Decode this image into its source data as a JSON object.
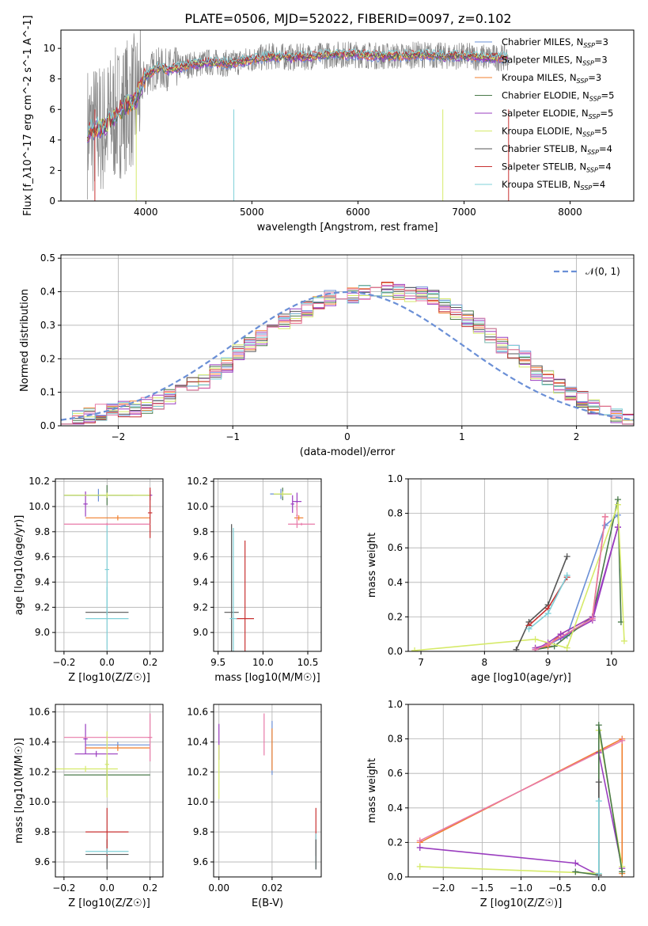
{
  "title": "PLATE=0506, MJD=52022, FIBERID=0097, z=0.102",
  "colors": {
    "c_miles": "#6a8fd6",
    "s_miles": "#9a3dbf",
    "k_miles": "#f07f2d",
    "c_elodie": "#4a7a4a",
    "s_elodie": "#9a3dbf",
    "k_elodie": "#d6ea6a",
    "c_stelib": "#555555",
    "s_stelib": "#c83232",
    "k_stelib": "#7fd0d8",
    "pink": "#e87aa8",
    "grey_spec": "#888888"
  },
  "chart_data": [
    {
      "id": "spectrum",
      "type": "line",
      "xlabel": "wavelength [Angstrom, rest frame]",
      "ylabel": "Flux [f_λ10^-17 erg cm^-2 s^-1 A^-1]",
      "xlim": [
        3200,
        8600
      ],
      "ylim": [
        0,
        11.2
      ],
      "xticks": [
        4000,
        5000,
        6000,
        7000,
        8000
      ],
      "yticks": [
        0,
        2,
        4,
        6,
        8,
        10
      ],
      "legend": "top-right",
      "series": [
        {
          "name": "Chabrier MILES, N_SSP=3",
          "color": "c_miles"
        },
        {
          "name": "Salpeter MILES, N_SSP=3",
          "color": "s_miles"
        },
        {
          "name": "Kroupa MILES, N_SSP=3",
          "color": "k_miles"
        },
        {
          "name": "Chabrier ELODIE, N_SSP=5",
          "color": "c_elodie"
        },
        {
          "name": "Salpeter ELODIE, N_SSP=5",
          "color": "s_elodie"
        },
        {
          "name": "Kroupa ELODIE, N_SSP=5",
          "color": "k_elodie"
        },
        {
          "name": "Chabrier STELIB, N_SSP=4",
          "color": "c_stelib"
        },
        {
          "name": "Salpeter STELIB, N_SSP=4",
          "color": "s_stelib"
        },
        {
          "name": "Kroupa STELIB, N_SSP=4",
          "color": "k_stelib"
        }
      ],
      "continuum": [
        [
          3450,
          4.6
        ],
        [
          3600,
          4.8
        ],
        [
          3700,
          5.5
        ],
        [
          3800,
          6.2
        ],
        [
          3900,
          6.6
        ],
        [
          4000,
          8.2
        ],
        [
          4100,
          8.7
        ],
        [
          4200,
          8.6
        ],
        [
          4400,
          8.9
        ],
        [
          4600,
          9.1
        ],
        [
          4800,
          9.0
        ],
        [
          5000,
          9.3
        ],
        [
          5200,
          9.5
        ],
        [
          5400,
          9.4
        ],
        [
          5600,
          9.5
        ],
        [
          5800,
          9.6
        ],
        [
          6000,
          9.6
        ],
        [
          6200,
          9.5
        ],
        [
          6400,
          9.5
        ],
        [
          6600,
          9.6
        ],
        [
          6800,
          9.5
        ],
        [
          7000,
          9.5
        ],
        [
          7200,
          9.4
        ],
        [
          7400,
          9.4
        ]
      ]
    },
    {
      "id": "residuals",
      "type": "bar",
      "xlabel": "(data-model)/error",
      "ylabel": "Normed distribution",
      "xlim": [
        -2.5,
        2.5
      ],
      "ylim": [
        0,
        0.51
      ],
      "xticks": [
        -2,
        -1,
        0,
        1,
        2
      ],
      "yticks": [
        0.0,
        0.1,
        0.2,
        0.3,
        0.4,
        0.5
      ],
      "legend": "top-right",
      "reference": {
        "name": "𝒩(0, 1)",
        "color": "c_miles"
      },
      "bin_edges_step": 0.1,
      "bin_start": -2.5,
      "base_hist": [
        0.02,
        0.02,
        0.03,
        0.04,
        0.05,
        0.05,
        0.05,
        0.06,
        0.07,
        0.09,
        0.11,
        0.12,
        0.13,
        0.16,
        0.18,
        0.22,
        0.24,
        0.26,
        0.29,
        0.31,
        0.33,
        0.35,
        0.37,
        0.38,
        0.38,
        0.39,
        0.4,
        0.41,
        0.41,
        0.4,
        0.39,
        0.39,
        0.38,
        0.36,
        0.34,
        0.32,
        0.3,
        0.27,
        0.24,
        0.22,
        0.2,
        0.16,
        0.14,
        0.12,
        0.1,
        0.08,
        0.06,
        0.04,
        0.03,
        0.02
      ]
    },
    {
      "id": "age_vs_Z",
      "type": "scatter",
      "xlabel": "Z [log10(Z/Z☉)]",
      "ylabel": "age  [log10(age/yr)]",
      "xlim": [
        -0.24,
        0.26
      ],
      "ylim": [
        8.85,
        10.22
      ],
      "xticks": [
        -0.2,
        0.0,
        0.2
      ],
      "yticks": [
        9.0,
        9.2,
        9.4,
        9.6,
        9.8,
        10.0,
        10.2
      ],
      "points": [
        {
          "x": -0.04,
          "xerr": 0.16,
          "y": 10.09,
          "yerr": 0.05,
          "color": "c_miles"
        },
        {
          "x": 0.2,
          "xerr": 0.01,
          "y": 10.09,
          "yerr": 0.04,
          "color": "s_miles"
        },
        {
          "x": 0.05,
          "xerr": 0.15,
          "y": 9.91,
          "yerr": 0.02,
          "color": "k_miles"
        },
        {
          "x": 0.0,
          "xerr": 0.2,
          "y": 10.09,
          "yerr": 0.08,
          "color": "c_elodie"
        },
        {
          "x": -0.1,
          "xerr": 0.01,
          "y": 10.02,
          "yerr": 0.1,
          "color": "s_elodie"
        },
        {
          "x": 0.0,
          "xerr": 0.2,
          "y": 10.09,
          "yerr": 0.02,
          "color": "k_elodie"
        },
        {
          "x": 0.0,
          "xerr": 0.1,
          "y": 9.16,
          "yerr": 0.02,
          "color": "c_stelib"
        },
        {
          "x": 0.2,
          "xerr": 0.01,
          "y": 9.95,
          "yerr": 0.2,
          "color": "s_stelib"
        },
        {
          "x": 0.0,
          "xerr": 0.1,
          "y": 9.11,
          "yerr": 0.25,
          "color": "k_stelib"
        },
        {
          "x": 0.0,
          "xerr": 0.2,
          "y": 9.86,
          "yerr": 0.01,
          "color": "pink"
        },
        {
          "x": 0.0,
          "xerr": 0.01,
          "y": 9.5,
          "yerr": 0.35,
          "color": "k_stelib"
        }
      ]
    },
    {
      "id": "age_vs_mass",
      "type": "scatter",
      "xlabel": "mass [log10(M/M☉)]",
      "ylabel": "",
      "xlim": [
        9.45,
        10.65
      ],
      "ylim": [
        8.85,
        10.22
      ],
      "xticks": [
        9.5,
        10.0,
        10.5
      ],
      "yticks": [
        9.0,
        9.2,
        9.4,
        9.6,
        9.8,
        10.0,
        10.2
      ],
      "points": [
        {
          "x": 10.2,
          "xerr": 0.12,
          "y": 10.1,
          "yerr": 0.04,
          "color": "c_miles"
        },
        {
          "x": 10.38,
          "xerr": 0.05,
          "y": 10.04,
          "yerr": 0.07,
          "color": "s_miles"
        },
        {
          "x": 10.4,
          "xerr": 0.05,
          "y": 9.91,
          "yerr": 0.02,
          "color": "k_miles"
        },
        {
          "x": 10.22,
          "xerr": 0.1,
          "y": 10.1,
          "yerr": 0.05,
          "color": "c_elodie"
        },
        {
          "x": 10.33,
          "xerr": 0.02,
          "y": 10.02,
          "yerr": 0.07,
          "color": "s_elodie"
        },
        {
          "x": 10.22,
          "xerr": 0.1,
          "y": 10.1,
          "yerr": 0.02,
          "color": "k_elodie"
        },
        {
          "x": 9.65,
          "xerr": 0.08,
          "y": 9.16,
          "yerr": 0.7,
          "color": "c_stelib"
        },
        {
          "x": 9.8,
          "xerr": 0.1,
          "y": 9.11,
          "yerr": 0.62,
          "color": "s_stelib"
        },
        {
          "x": 9.67,
          "xerr": 0.04,
          "y": 9.11,
          "yerr": 0.72,
          "color": "k_stelib"
        },
        {
          "x": 10.43,
          "xerr": 0.15,
          "y": 9.86,
          "yerr": 0.01,
          "color": "pink"
        },
        {
          "x": 10.38,
          "xerr": 0.01,
          "y": 9.93,
          "yerr": 0.1,
          "color": "pink"
        }
      ]
    },
    {
      "id": "mass_weight_vs_age",
      "type": "line",
      "xlabel": "age  [log10(age/yr)]",
      "ylabel": "mass weight",
      "xlim": [
        6.8,
        10.35
      ],
      "ylim": [
        0,
        1.0
      ],
      "xticks": [
        7,
        8,
        9,
        10
      ],
      "yticks": [
        0.0,
        0.2,
        0.4,
        0.6,
        0.8,
        1.0
      ],
      "series": [
        {
          "color": "c_miles",
          "x": [
            8.8,
            9.0,
            9.3,
            9.9,
            10.1
          ],
          "y": [
            0.01,
            0.04,
            0.09,
            0.73,
            0.79
          ]
        },
        {
          "color": "s_miles",
          "x": [
            8.8,
            9.0,
            9.2,
            9.7,
            10.1
          ],
          "y": [
            0.02,
            0.04,
            0.08,
            0.18,
            0.72
          ]
        },
        {
          "color": "k_miles",
          "x": [
            8.8,
            9.0,
            9.2,
            9.7,
            9.9
          ],
          "y": [
            0.01,
            0.03,
            0.1,
            0.2,
            0.78
          ]
        },
        {
          "color": "c_elodie",
          "x": [
            8.8,
            9.1,
            9.7,
            10.1,
            10.15
          ],
          "y": [
            0.01,
            0.03,
            0.2,
            0.88,
            0.17
          ]
        },
        {
          "color": "s_elodie",
          "x": [
            8.8,
            9.0,
            9.2,
            9.7,
            10.1
          ],
          "y": [
            0.01,
            0.05,
            0.1,
            0.2,
            0.72
          ]
        },
        {
          "color": "k_elodie",
          "x": [
            6.9,
            8.8,
            9.3,
            10.1,
            10.2
          ],
          "y": [
            0.005,
            0.07,
            0.02,
            0.85,
            0.06
          ]
        },
        {
          "color": "c_stelib",
          "x": [
            8.5,
            8.7,
            9.0,
            9.3
          ],
          "y": [
            0.01,
            0.17,
            0.27,
            0.55
          ]
        },
        {
          "color": "s_stelib",
          "x": [
            8.7,
            9.0,
            9.3
          ],
          "y": [
            0.15,
            0.25,
            0.43
          ]
        },
        {
          "color": "k_stelib",
          "x": [
            8.7,
            9.0,
            9.3
          ],
          "y": [
            0.13,
            0.22,
            0.44
          ]
        },
        {
          "color": "pink",
          "x": [
            8.8,
            9.0,
            9.7,
            9.9
          ],
          "y": [
            0.01,
            0.04,
            0.19,
            0.78
          ]
        }
      ]
    },
    {
      "id": "mass_vs_Z",
      "type": "scatter",
      "xlabel": "Z [log10(Z/Z☉)]",
      "ylabel": "mass [log10(M/M☉)]",
      "xlim": [
        -0.24,
        0.26
      ],
      "ylim": [
        9.5,
        10.65
      ],
      "xticks": [
        -0.2,
        0.0,
        0.2
      ],
      "yticks": [
        9.6,
        9.8,
        10.0,
        10.2,
        10.4,
        10.6
      ],
      "points": [
        {
          "x": 0.05,
          "xerr": 0.15,
          "y": 10.38,
          "yerr": 0.02,
          "color": "c_miles"
        },
        {
          "x": -0.1,
          "xerr": 0.01,
          "y": 10.42,
          "yerr": 0.1,
          "color": "s_miles"
        },
        {
          "x": 0.05,
          "xerr": 0.15,
          "y": 10.36,
          "yerr": 0.02,
          "color": "k_miles"
        },
        {
          "x": 0.0,
          "xerr": 0.2,
          "y": 10.18,
          "yerr": 0.1,
          "color": "c_elodie"
        },
        {
          "x": -0.05,
          "xerr": 0.1,
          "y": 10.32,
          "yerr": 0.02,
          "color": "s_elodie"
        },
        {
          "x": -0.1,
          "xerr": 0.15,
          "y": 10.22,
          "yerr": 0.02,
          "color": "k_elodie"
        },
        {
          "x": 0.0,
          "xerr": 0.1,
          "y": 9.65,
          "yerr": 0.1,
          "color": "c_stelib"
        },
        {
          "x": 0.0,
          "xerr": 0.1,
          "y": 9.8,
          "yerr": 0.16,
          "color": "s_stelib"
        },
        {
          "x": 0.0,
          "xerr": 0.1,
          "y": 9.67,
          "yerr": 0.02,
          "color": "k_stelib"
        },
        {
          "x": 0.2,
          "xerr": 0.01,
          "y": 10.43,
          "yerr": 0.16,
          "color": "pink"
        },
        {
          "x": 0.0,
          "xerr": 0.2,
          "y": 10.43,
          "yerr": 0.01,
          "color": "pink"
        },
        {
          "x": 0.0,
          "xerr": 0.01,
          "y": 10.25,
          "yerr": 0.22,
          "color": "k_elodie"
        }
      ]
    },
    {
      "id": "mass_vs_ebv",
      "type": "scatter",
      "xlabel": "E(B-V)",
      "ylabel": "",
      "xlim": [
        -0.002,
        0.0385
      ],
      "ylim": [
        9.5,
        10.65
      ],
      "xticks": [
        0.0,
        0.02
      ],
      "yticks": [
        9.6,
        9.8,
        10.0,
        10.2,
        10.4,
        10.6
      ],
      "points": [
        {
          "x": 0.0,
          "xerr": 0.0,
          "y": 10.4,
          "yerr": 0.12,
          "color": "s_miles"
        },
        {
          "x": 0.0,
          "xerr": 0.0,
          "y": 10.2,
          "yerr": 0.18,
          "color": "k_elodie"
        },
        {
          "x": 0.02,
          "xerr": 0.0,
          "y": 10.36,
          "yerr": 0.18,
          "color": "c_miles"
        },
        {
          "x": 0.02,
          "xerr": 0.0,
          "y": 10.35,
          "yerr": 0.14,
          "color": "k_miles"
        },
        {
          "x": 0.017,
          "xerr": 0.0,
          "y": 10.45,
          "yerr": 0.14,
          "color": "pink"
        },
        {
          "x": 0.0365,
          "xerr": 0.0,
          "y": 9.8,
          "yerr": 0.16,
          "color": "s_stelib"
        },
        {
          "x": 0.0365,
          "xerr": 0.0,
          "y": 9.67,
          "yerr": 0.12,
          "color": "k_stelib"
        },
        {
          "x": 0.0365,
          "xerr": 0.0,
          "y": 9.65,
          "yerr": 0.1,
          "color": "c_stelib"
        }
      ]
    },
    {
      "id": "mass_weight_vs_Z",
      "type": "line",
      "xlabel": "Z [log10(Z/Z☉)]",
      "ylabel": "mass weight",
      "xlim": [
        -2.45,
        0.45
      ],
      "ylim": [
        0,
        1.0
      ],
      "xticks": [
        -2.0,
        -1.5,
        -1.0,
        -0.5,
        0.0
      ],
      "yticks": [
        0.0,
        0.2,
        0.4,
        0.6,
        0.8,
        1.0
      ],
      "series": [
        {
          "color": "k_miles",
          "x": [
            -2.3,
            0.3,
            0.3
          ],
          "y": [
            0.2,
            0.8,
            0.02
          ]
        },
        {
          "color": "pink",
          "x": [
            -2.3,
            0.3
          ],
          "y": [
            0.21,
            0.79
          ]
        },
        {
          "color": "s_miles",
          "x": [
            -2.3,
            -0.3,
            0.0,
            0.0,
            0.3
          ],
          "y": [
            0.17,
            0.08,
            0.01,
            0.72,
            0.05
          ]
        },
        {
          "color": "k_elodie",
          "x": [
            -2.3,
            0.0,
            0.0,
            0.3
          ],
          "y": [
            0.06,
            0.02,
            0.85,
            0.06
          ]
        },
        {
          "color": "c_elodie",
          "x": [
            -0.3,
            0.0,
            0.0,
            0.3
          ],
          "y": [
            0.03,
            0.01,
            0.88,
            0.03
          ]
        },
        {
          "color": "c_stelib",
          "x": [
            0.0,
            0.0
          ],
          "y": [
            0.01,
            0.55
          ]
        },
        {
          "color": "k_stelib",
          "x": [
            0.0,
            0.0
          ],
          "y": [
            0.02,
            0.44
          ]
        }
      ]
    }
  ]
}
